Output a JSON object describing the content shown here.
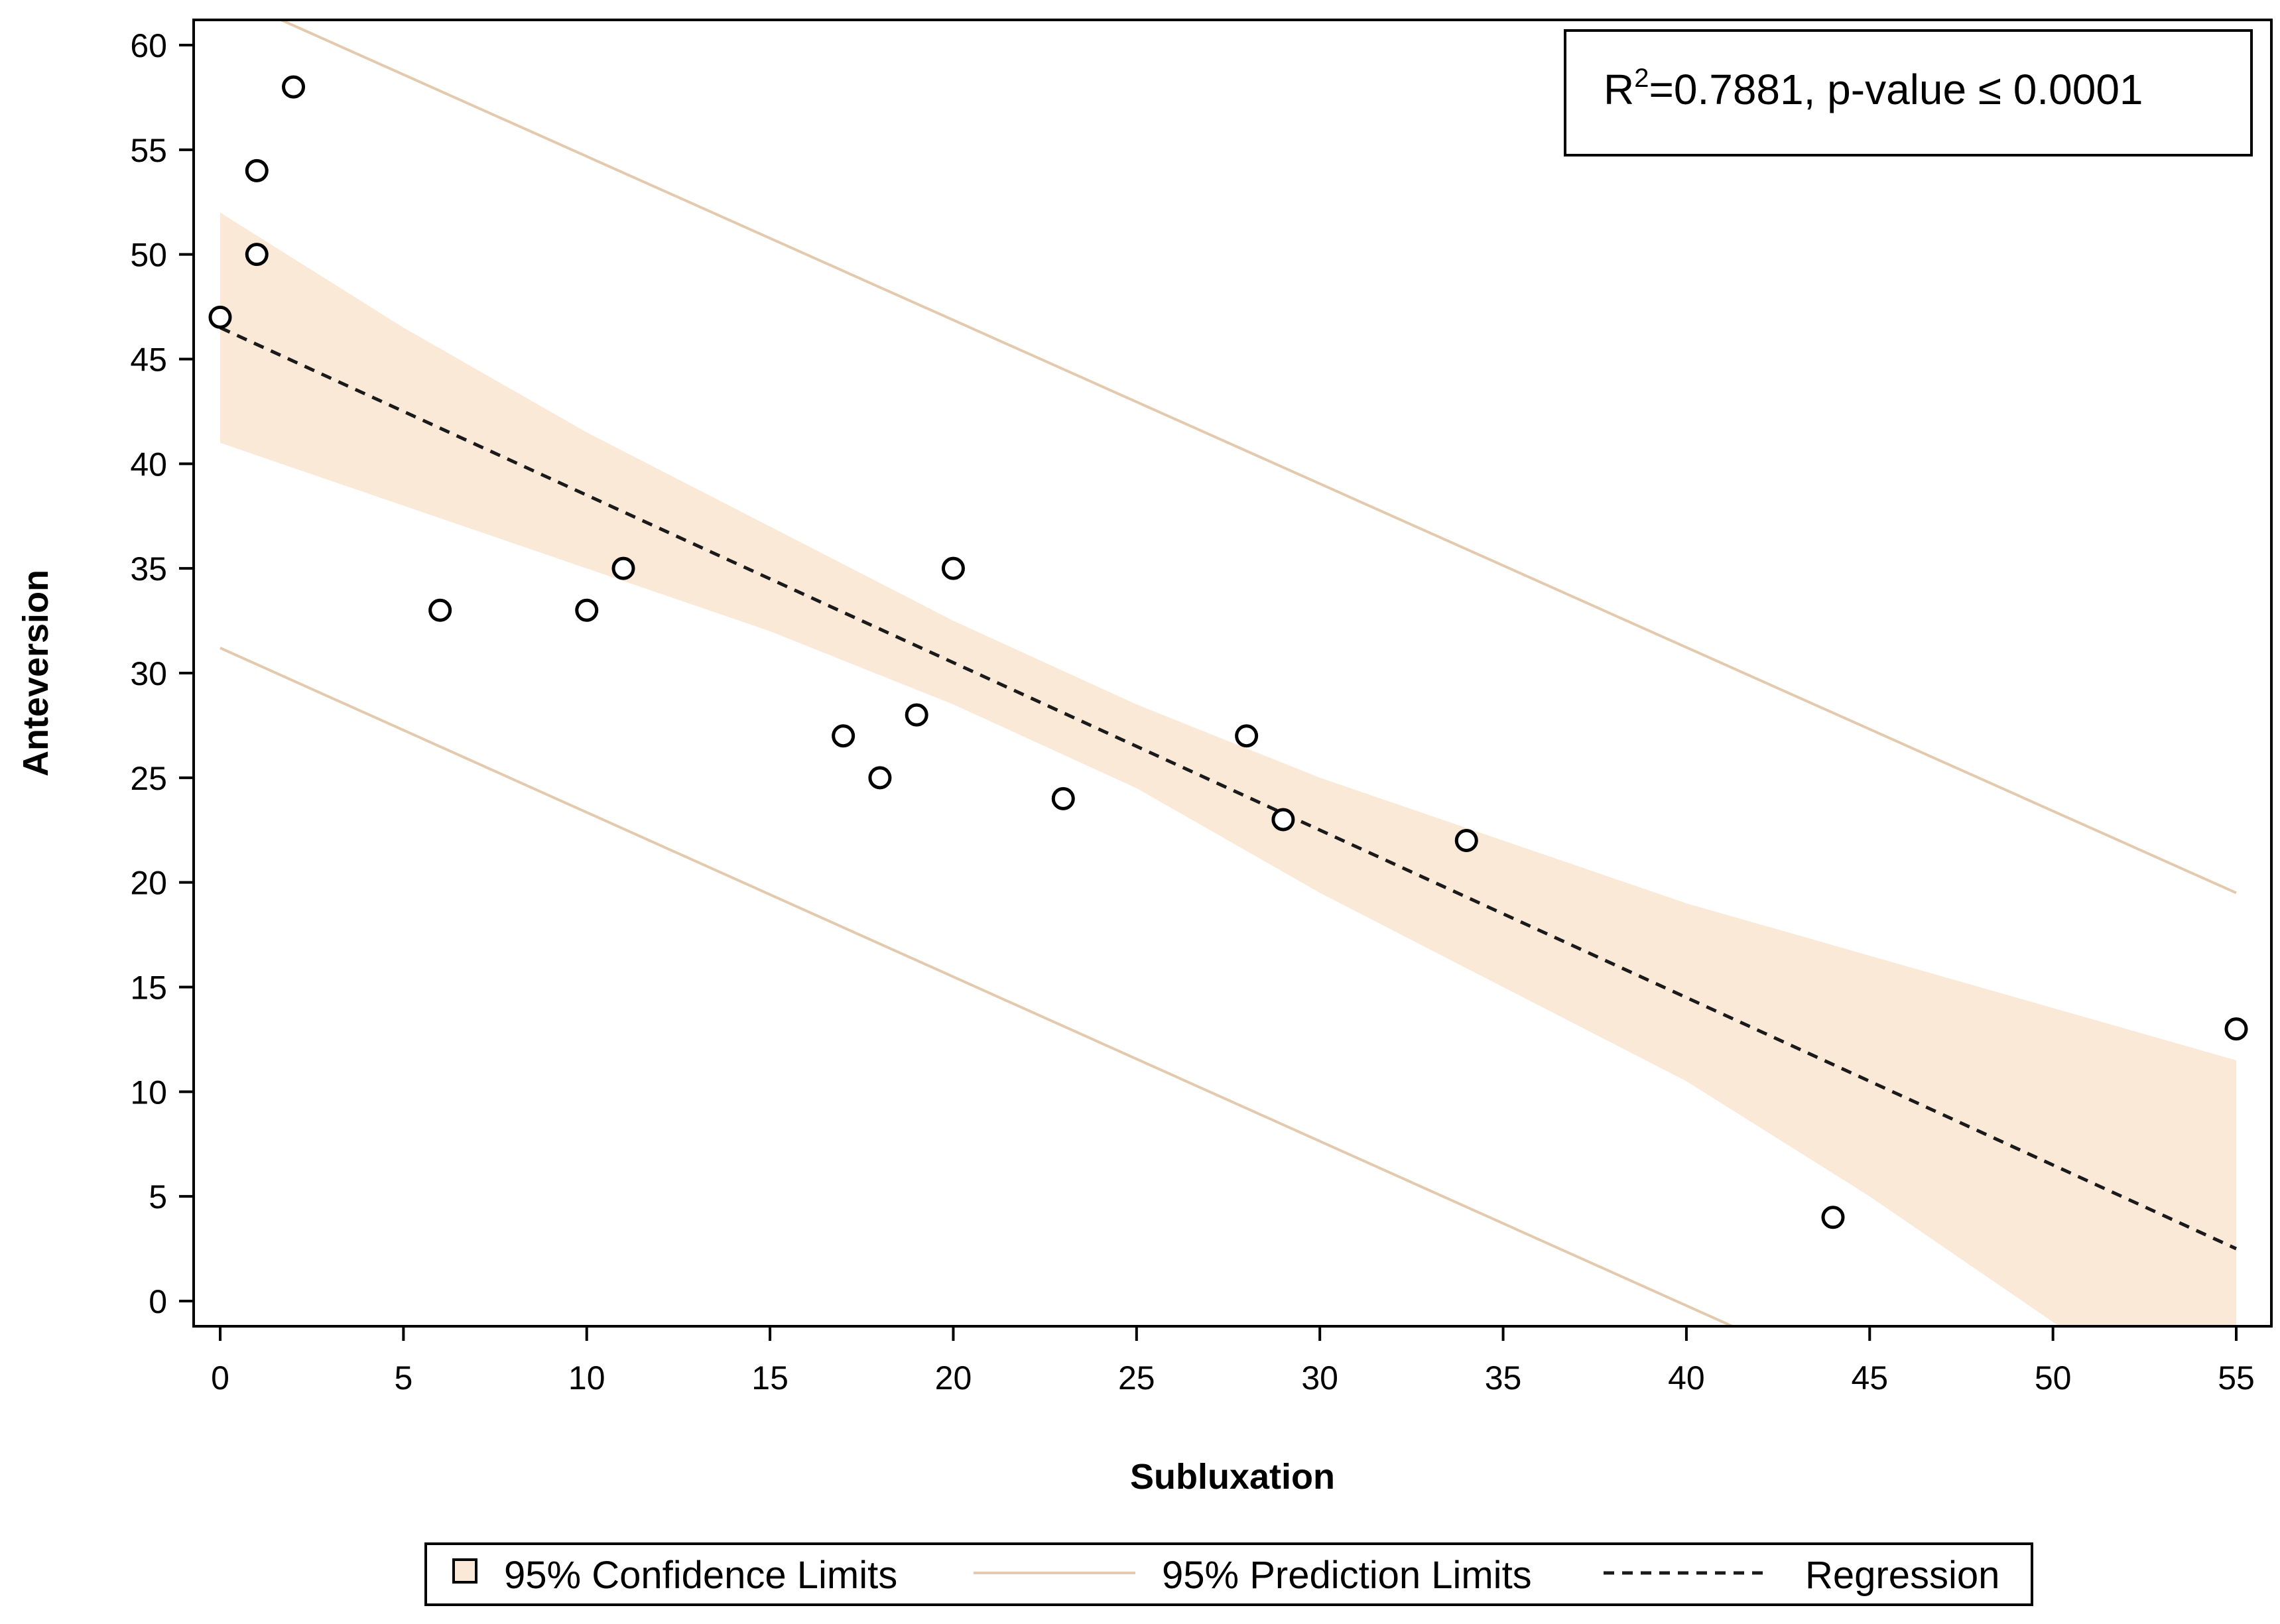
{
  "chart_data": {
    "type": "scatter",
    "title": "",
    "xlabel": "Subluxation",
    "ylabel": "Anteversion",
    "xlim": [
      0,
      55
    ],
    "ylim": [
      0,
      60
    ],
    "xticks": [
      0,
      5,
      10,
      15,
      20,
      25,
      30,
      35,
      40,
      45,
      50,
      55
    ],
    "yticks": [
      0,
      5,
      10,
      15,
      20,
      25,
      30,
      35,
      40,
      45,
      50,
      55,
      60
    ],
    "points": [
      {
        "x": 0,
        "y": 47
      },
      {
        "x": 1,
        "y": 50
      },
      {
        "x": 1,
        "y": 54
      },
      {
        "x": 2,
        "y": 58
      },
      {
        "x": 6,
        "y": 33
      },
      {
        "x": 10,
        "y": 33
      },
      {
        "x": 11,
        "y": 35
      },
      {
        "x": 17,
        "y": 27
      },
      {
        "x": 18,
        "y": 25
      },
      {
        "x": 19,
        "y": 28
      },
      {
        "x": 20,
        "y": 35
      },
      {
        "x": 23,
        "y": 24
      },
      {
        "x": 28,
        "y": 27
      },
      {
        "x": 29,
        "y": 23
      },
      {
        "x": 34,
        "y": 22
      },
      {
        "x": 44,
        "y": 4
      },
      {
        "x": 55,
        "y": 13
      }
    ],
    "regression": {
      "intercept": 46.5,
      "slope": -0.8,
      "label": "Regression",
      "style": "dashed"
    },
    "confidence_band": {
      "label": "95% Confidence Limits",
      "upper": [
        {
          "x": 0,
          "y": 52
        },
        {
          "x": 5,
          "y": 46.5
        },
        {
          "x": 10,
          "y": 41.5
        },
        {
          "x": 15,
          "y": 37
        },
        {
          "x": 20,
          "y": 32.5
        },
        {
          "x": 25,
          "y": 28.5
        },
        {
          "x": 30,
          "y": 25
        },
        {
          "x": 35,
          "y": 22
        },
        {
          "x": 40,
          "y": 19
        },
        {
          "x": 45,
          "y": 16.5
        },
        {
          "x": 50,
          "y": 14
        },
        {
          "x": 55,
          "y": 11.5
        }
      ],
      "lower": [
        {
          "x": 0,
          "y": 41
        },
        {
          "x": 5,
          "y": 38
        },
        {
          "x": 10,
          "y": 35
        },
        {
          "x": 15,
          "y": 32
        },
        {
          "x": 20,
          "y": 28.5
        },
        {
          "x": 25,
          "y": 24.5
        },
        {
          "x": 30,
          "y": 19.5
        },
        {
          "x": 35,
          "y": 15
        },
        {
          "x": 40,
          "y": 10.5
        },
        {
          "x": 45,
          "y": 5
        },
        {
          "x": 50,
          "y": -1
        },
        {
          "x": 55,
          "y": -6.5
        }
      ]
    },
    "prediction_limits": {
      "label": "95% Prediction Limits",
      "upper": [
        {
          "x": 0,
          "y": 62.5
        },
        {
          "x": 55,
          "y": 19.5
        }
      ],
      "lower": [
        {
          "x": 0,
          "y": 31.2
        },
        {
          "x": 55,
          "y": -12
        }
      ]
    },
    "annotation": {
      "r2_label": "R",
      "r2_sup": "2",
      "r2_value": "=0.7881, p-value ≤ 0.0001"
    },
    "legend": {
      "position": "bottom",
      "items": [
        {
          "label": "95% Confidence Limits",
          "kind": "band"
        },
        {
          "label": "95% Prediction Limits",
          "kind": "line"
        },
        {
          "label": "Regression",
          "kind": "dashed"
        }
      ]
    },
    "colors": {
      "band": "#fbe9d8",
      "prediction": "#e3c9ae",
      "regression": "#1a1a1a",
      "marker": "#000000",
      "axis": "#000000"
    }
  }
}
